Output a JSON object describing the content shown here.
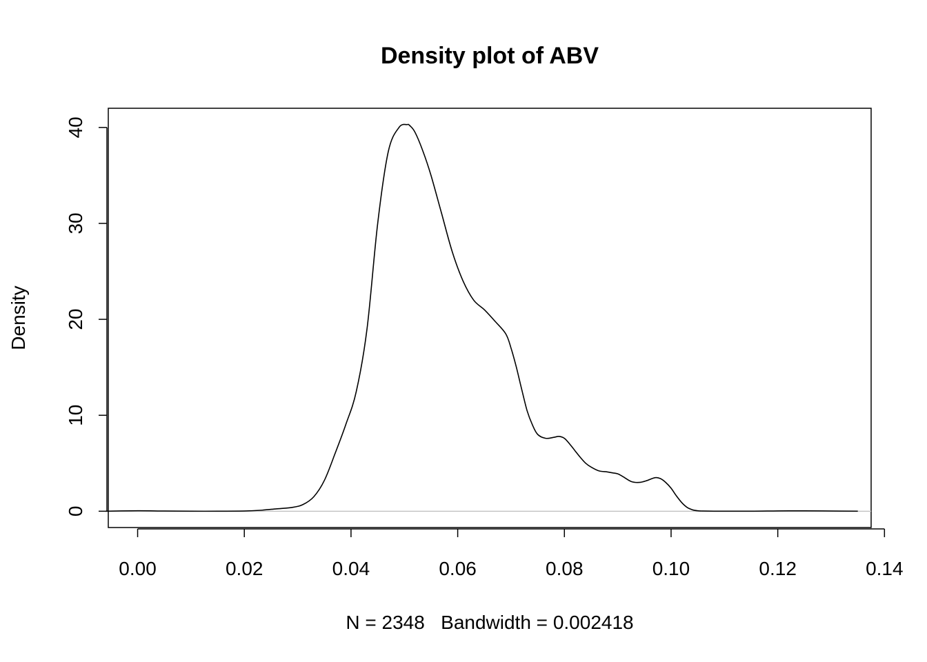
{
  "chart_data": {
    "type": "line",
    "title": "Density plot of ABV",
    "xlabel": "N = 2348   Bandwidth = 0.002418",
    "ylabel": "Density",
    "xlim": [
      -0.0055,
      0.1375
    ],
    "ylim": [
      -1.7,
      42.0
    ],
    "x_ticks": [
      0.0,
      0.02,
      0.04,
      0.06,
      0.08,
      0.1,
      0.12,
      0.14
    ],
    "x_tick_labels": [
      "0.00",
      "0.02",
      "0.04",
      "0.06",
      "0.08",
      "0.10",
      "0.12",
      "0.14"
    ],
    "y_ticks": [
      0,
      10,
      20,
      30,
      40
    ],
    "y_tick_labels": [
      "0",
      "10",
      "20",
      "30",
      "40"
    ],
    "zero_line": true,
    "series": [
      {
        "x": [
          -0.006,
          0.0,
          0.005,
          0.01,
          0.015,
          0.02,
          0.023,
          0.026,
          0.029,
          0.031,
          0.033,
          0.035,
          0.037,
          0.039,
          0.041,
          0.043,
          0.045,
          0.047,
          0.049,
          0.0505,
          0.051,
          0.052,
          0.0535,
          0.055,
          0.057,
          0.059,
          0.061,
          0.063,
          0.065,
          0.067,
          0.069,
          0.07,
          0.071,
          0.072,
          0.073,
          0.074,
          0.075,
          0.0765,
          0.078,
          0.079,
          0.08,
          0.081,
          0.082,
          0.083,
          0.084,
          0.085,
          0.0865,
          0.088,
          0.089,
          0.09,
          0.091,
          0.0925,
          0.094,
          0.0955,
          0.097,
          0.098,
          0.099,
          0.1,
          0.101,
          0.102,
          0.103,
          0.104,
          0.105,
          0.106,
          0.108,
          0.11,
          0.115,
          0.12,
          0.125,
          0.13,
          0.135
        ],
        "y": [
          0.0,
          0.05,
          0.02,
          0.0,
          0.0,
          0.02,
          0.1,
          0.25,
          0.4,
          0.7,
          1.5,
          3.2,
          6.0,
          9.0,
          12.5,
          19.0,
          30.0,
          37.5,
          40.0,
          40.3,
          40.2,
          39.5,
          37.5,
          35.0,
          31.0,
          27.0,
          24.0,
          22.0,
          21.0,
          19.8,
          18.5,
          17.0,
          15.0,
          12.7,
          10.5,
          9.0,
          8.0,
          7.6,
          7.7,
          7.8,
          7.6,
          7.0,
          6.3,
          5.6,
          5.0,
          4.6,
          4.2,
          4.1,
          4.0,
          3.9,
          3.6,
          3.1,
          3.0,
          3.2,
          3.5,
          3.4,
          3.0,
          2.4,
          1.6,
          0.9,
          0.4,
          0.15,
          0.05,
          0.02,
          0.0,
          0.0,
          0.0,
          0.03,
          0.04,
          0.02,
          0.0
        ]
      }
    ]
  }
}
